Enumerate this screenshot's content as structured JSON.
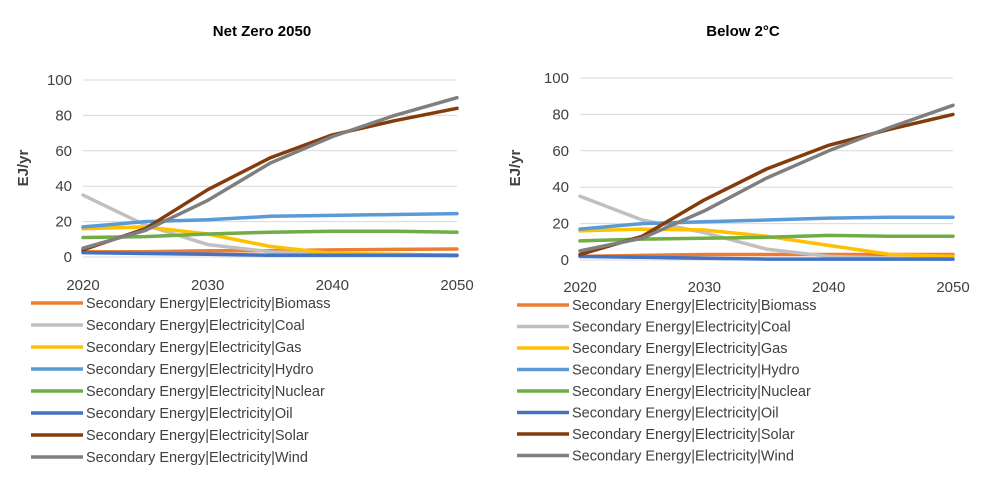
{
  "chart_data": [
    {
      "type": "line",
      "title": "Net Zero 2050",
      "xlabel": "",
      "ylabel": "EJ/yr",
      "x": [
        2020,
        2025,
        2030,
        2035,
        2040,
        2045,
        2050
      ],
      "xticks": [
        "2020",
        "2030",
        "2040",
        "2050"
      ],
      "yticks": [
        "0",
        "20",
        "40",
        "60",
        "80",
        "100"
      ],
      "ylim": [
        0,
        100
      ],
      "xlim": [
        2020,
        2050
      ],
      "grid": "horizontal",
      "legend_position": "bottom",
      "series": [
        {
          "name": "Secondary Energy|Electricity|Biomass",
          "color": "#ED7D31",
          "values": [
            3,
            3,
            3.5,
            3.5,
            4,
            4.3,
            4.5
          ]
        },
        {
          "name": "Secondary Energy|Electricity|Coal",
          "color": "#C0C0C0",
          "values": [
            35,
            18,
            7,
            3,
            1.5,
            1,
            0.5
          ]
        },
        {
          "name": "Secondary Energy|Electricity|Gas",
          "color": "#FFC000",
          "values": [
            16,
            17,
            13,
            6,
            2,
            1.5,
            1
          ]
        },
        {
          "name": "Secondary Energy|Electricity|Hydro",
          "color": "#5B9BD5",
          "values": [
            17,
            20,
            21,
            23,
            23.5,
            24,
            24.5
          ]
        },
        {
          "name": "Secondary Energy|Electricity|Nuclear",
          "color": "#70AD47",
          "values": [
            11,
            11.5,
            13,
            14,
            14.5,
            14.5,
            14
          ]
        },
        {
          "name": "Secondary Energy|Electricity|Oil",
          "color": "#4472C4",
          "values": [
            2.5,
            2,
            1.5,
            1,
            1,
            1,
            1
          ]
        },
        {
          "name": "Secondary Energy|Electricity|Solar",
          "color": "#843C0C",
          "values": [
            4,
            16,
            38,
            56,
            69,
            77,
            84
          ]
        },
        {
          "name": "Secondary Energy|Electricity|Wind",
          "color": "#7F7F7F",
          "values": [
            5,
            15,
            32,
            53,
            68,
            80,
            90
          ]
        }
      ]
    },
    {
      "type": "line",
      "title": "Below 2°C",
      "xlabel": "",
      "ylabel": "EJ/yr",
      "x": [
        2020,
        2025,
        2030,
        2035,
        2040,
        2045,
        2050
      ],
      "xticks": [
        "2020",
        "2030",
        "2040",
        "2050"
      ],
      "yticks": [
        "0",
        "20",
        "40",
        "60",
        "80",
        "100"
      ],
      "ylim": [
        0,
        100
      ],
      "xlim": [
        2020,
        2050
      ],
      "grid": "horizontal",
      "legend_position": "bottom",
      "series": [
        {
          "name": "Secondary Energy|Electricity|Biomass",
          "color": "#ED7D31",
          "values": [
            2,
            2.5,
            3,
            3,
            3,
            3,
            3
          ]
        },
        {
          "name": "Secondary Energy|Electricity|Coal",
          "color": "#C0C0C0",
          "values": [
            35,
            22,
            15,
            6,
            2,
            1,
            0.5
          ]
        },
        {
          "name": "Secondary Energy|Electricity|Gas",
          "color": "#FFC000",
          "values": [
            16,
            17,
            16.5,
            13,
            8,
            3,
            2
          ]
        },
        {
          "name": "Secondary Energy|Electricity|Hydro",
          "color": "#5B9BD5",
          "values": [
            17,
            20,
            21,
            22,
            23,
            23.5,
            23.5
          ]
        },
        {
          "name": "Secondary Energy|Electricity|Nuclear",
          "color": "#70AD47",
          "values": [
            10.5,
            11.5,
            12,
            12.5,
            13.5,
            13,
            13
          ]
        },
        {
          "name": "Secondary Energy|Electricity|Oil",
          "color": "#4472C4",
          "values": [
            2,
            1.5,
            1,
            0.5,
            0.5,
            0.5,
            0.5
          ]
        },
        {
          "name": "Secondary Energy|Electricity|Solar",
          "color": "#843C0C",
          "values": [
            3,
            13,
            33,
            50,
            63,
            72,
            80
          ]
        },
        {
          "name": "Secondary Energy|Electricity|Wind",
          "color": "#7F7F7F",
          "values": [
            5,
            12,
            27,
            45,
            60,
            73,
            85
          ]
        }
      ]
    }
  ]
}
